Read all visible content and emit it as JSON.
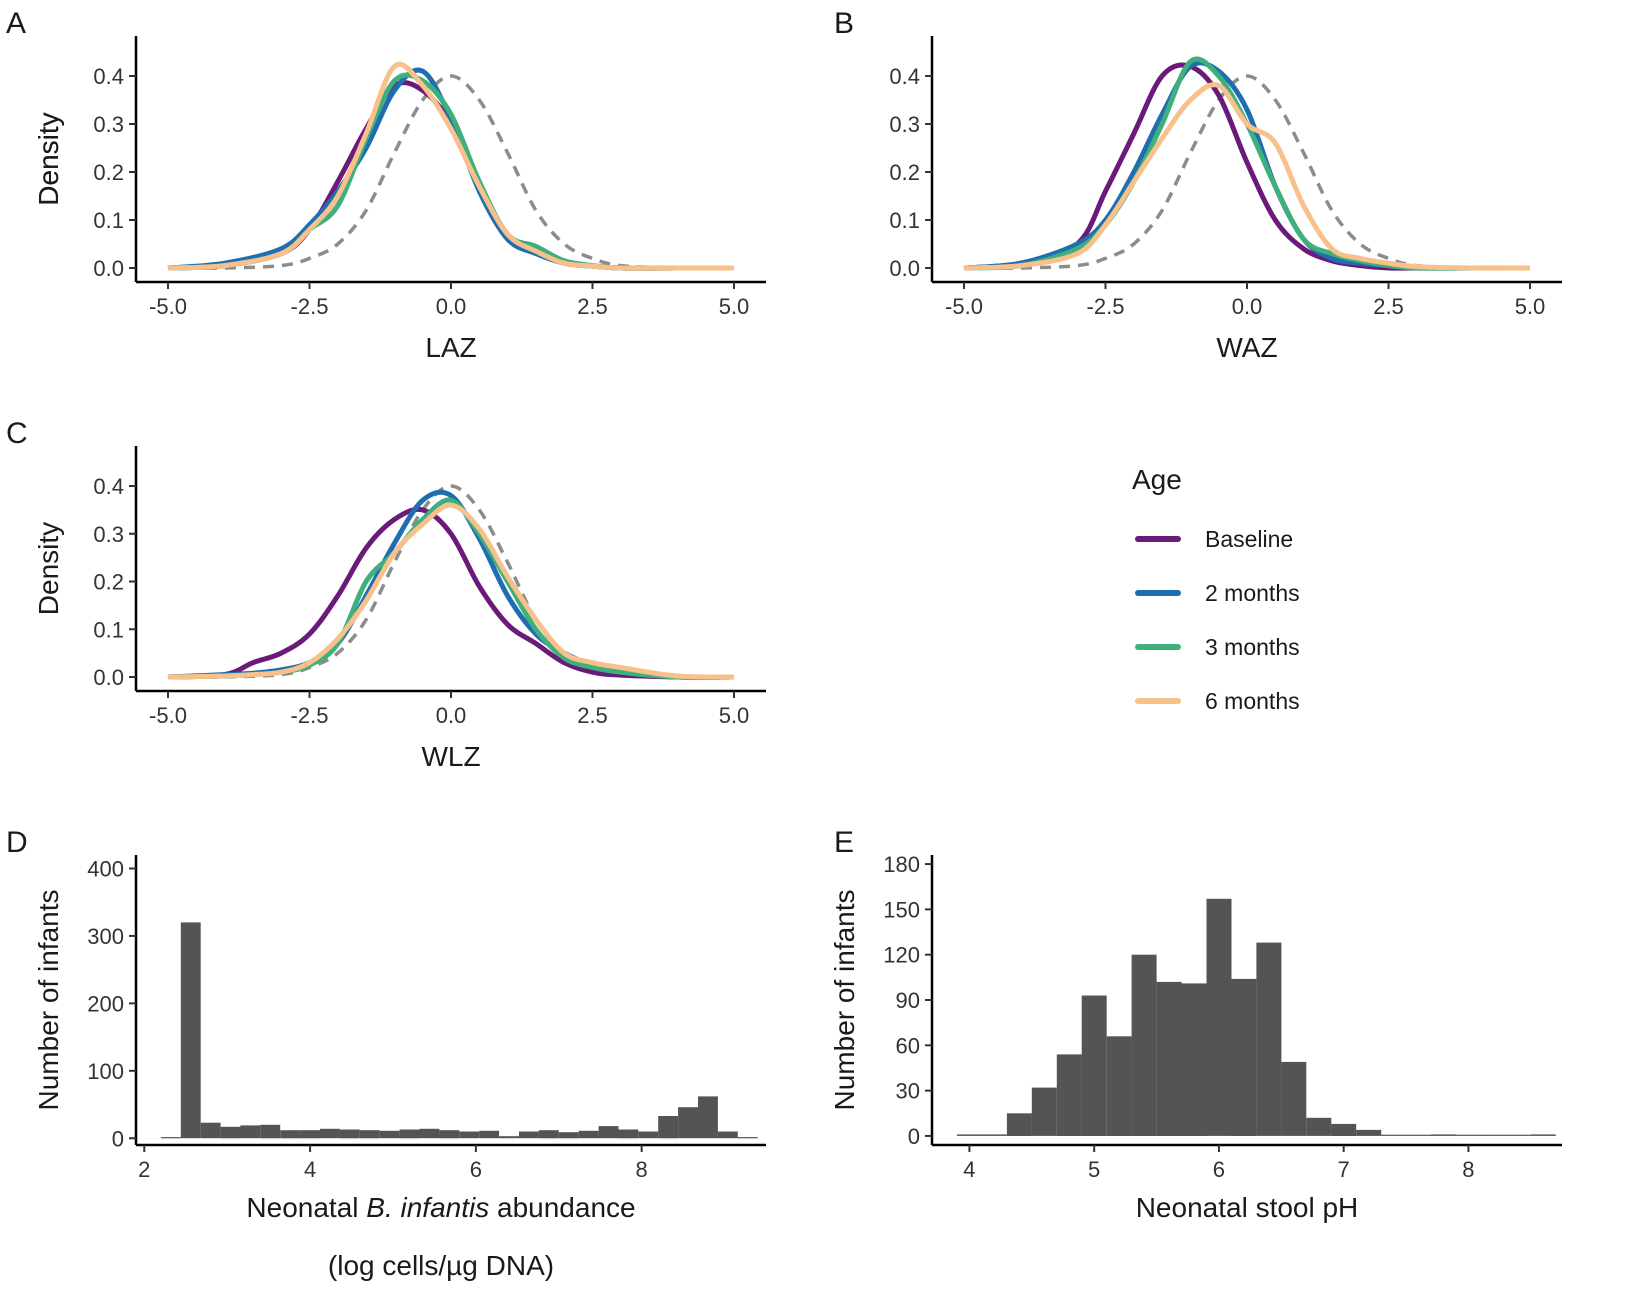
{
  "colors": {
    "baseline": "#6a1a78",
    "m2": "#1f6fb0",
    "m3": "#3fb07b",
    "m6": "#f8c08a",
    "reference": "#8c8c8c",
    "bar": "#545454"
  },
  "legend": {
    "title": "Age",
    "items": [
      {
        "label": "Baseline",
        "color_key": "baseline"
      },
      {
        "label": "2 months",
        "color_key": "m2"
      },
      {
        "label": "3 months",
        "color_key": "m3"
      },
      {
        "label": "6 months",
        "color_key": "m6"
      }
    ]
  },
  "chart_data": [
    {
      "panel": "A",
      "type": "line",
      "xlabel": "LAZ",
      "ylabel": "Density",
      "xlim": [
        -5,
        5
      ],
      "ylim": [
        0,
        0.44
      ],
      "xticks": [
        "-5.0",
        "-2.5",
        "0.0",
        "2.5",
        "5.0"
      ],
      "yticks": [
        "0.0",
        "0.1",
        "0.2",
        "0.3",
        "0.4"
      ],
      "reference": {
        "style": "dashed",
        "x": [
          -5,
          -4,
          -3,
          -2.5,
          -2,
          -1.5,
          -1,
          -0.5,
          0,
          0.5,
          1,
          1.5,
          2,
          2.5,
          3,
          4,
          5
        ],
        "y": [
          0,
          0,
          0.005,
          0.02,
          0.05,
          0.12,
          0.24,
          0.35,
          0.4,
          0.35,
          0.24,
          0.12,
          0.05,
          0.02,
          0.005,
          0,
          0
        ]
      },
      "series": [
        {
          "name": "Baseline",
          "color_key": "baseline",
          "x": [
            -5,
            -4,
            -3,
            -2.5,
            -2,
            -1.5,
            -1,
            -0.5,
            0,
            0.5,
            1,
            1.5,
            2,
            2.5,
            3,
            4,
            5
          ],
          "y": [
            0,
            0.005,
            0.03,
            0.08,
            0.18,
            0.29,
            0.38,
            0.37,
            0.3,
            0.17,
            0.07,
            0.035,
            0.01,
            0.004,
            0,
            0,
            0
          ]
        },
        {
          "name": "2 months",
          "color_key": "m2",
          "x": [
            -5,
            -4,
            -3,
            -2.5,
            -2,
            -1.5,
            -1,
            -0.5,
            0,
            0.5,
            1,
            1.5,
            2,
            2.5,
            3,
            4,
            5
          ],
          "y": [
            0,
            0.01,
            0.04,
            0.09,
            0.16,
            0.25,
            0.37,
            0.41,
            0.31,
            0.16,
            0.06,
            0.03,
            0.01,
            0.004,
            0,
            0,
            0
          ]
        },
        {
          "name": "3 months",
          "color_key": "m3",
          "x": [
            -5,
            -4,
            -3,
            -2.5,
            -2,
            -1.5,
            -1,
            -0.5,
            0,
            0.5,
            1,
            1.5,
            2,
            2.5,
            3,
            4,
            5
          ],
          "y": [
            0,
            0.005,
            0.03,
            0.08,
            0.13,
            0.27,
            0.39,
            0.39,
            0.32,
            0.18,
            0.07,
            0.045,
            0.015,
            0.005,
            0,
            0,
            0
          ]
        },
        {
          "name": "6 months",
          "color_key": "m6",
          "x": [
            -5,
            -4,
            -3,
            -2.5,
            -2,
            -1.5,
            -1,
            -0.5,
            0,
            0.5,
            1,
            1.5,
            2,
            2.5,
            3,
            4,
            5
          ],
          "y": [
            0,
            0.005,
            0.03,
            0.08,
            0.15,
            0.28,
            0.42,
            0.38,
            0.29,
            0.17,
            0.07,
            0.035,
            0.01,
            0.004,
            0,
            0,
            0
          ]
        }
      ]
    },
    {
      "panel": "B",
      "type": "line",
      "xlabel": "WAZ",
      "ylabel": "Density",
      "xlim": [
        -5,
        5
      ],
      "ylim": [
        0,
        0.44
      ],
      "xticks": [
        "-5.0",
        "-2.5",
        "0.0",
        "2.5",
        "5.0"
      ],
      "yticks": [
        "0.0",
        "0.1",
        "0.2",
        "0.3",
        "0.4"
      ],
      "reference": {
        "style": "dashed",
        "x": [
          -5,
          -4,
          -3,
          -2.5,
          -2,
          -1.5,
          -1,
          -0.5,
          0,
          0.5,
          1,
          1.5,
          2,
          2.5,
          3,
          4,
          5
        ],
        "y": [
          0,
          0,
          0.005,
          0.02,
          0.05,
          0.12,
          0.24,
          0.35,
          0.4,
          0.35,
          0.24,
          0.12,
          0.05,
          0.02,
          0.005,
          0,
          0
        ]
      },
      "series": [
        {
          "name": "Baseline",
          "color_key": "baseline",
          "x": [
            -5,
            -4,
            -3,
            -2.5,
            -2,
            -1.5,
            -1,
            -0.5,
            0,
            0.5,
            1,
            1.5,
            2,
            2.5,
            3,
            4,
            5
          ],
          "y": [
            0,
            0.01,
            0.05,
            0.16,
            0.28,
            0.4,
            0.42,
            0.36,
            0.22,
            0.1,
            0.04,
            0.015,
            0.005,
            0,
            0,
            0,
            0
          ]
        },
        {
          "name": "2 months",
          "color_key": "m2",
          "x": [
            -5,
            -4,
            -3,
            -2.5,
            -2,
            -1.5,
            -1,
            -0.5,
            0,
            0.5,
            1,
            1.5,
            2,
            2.5,
            3,
            4,
            5
          ],
          "y": [
            0,
            0.01,
            0.05,
            0.1,
            0.2,
            0.32,
            0.42,
            0.41,
            0.33,
            0.17,
            0.06,
            0.02,
            0.01,
            0.005,
            0,
            0,
            0
          ]
        },
        {
          "name": "3 months",
          "color_key": "m3",
          "x": [
            -5,
            -4,
            -3,
            -2.5,
            -2,
            -1.5,
            -1,
            -0.5,
            0,
            0.5,
            1,
            1.5,
            2,
            2.5,
            3,
            4,
            5
          ],
          "y": [
            0,
            0.005,
            0.04,
            0.09,
            0.18,
            0.3,
            0.43,
            0.4,
            0.3,
            0.17,
            0.06,
            0.03,
            0.015,
            0.005,
            0,
            0,
            0
          ]
        },
        {
          "name": "6 months",
          "color_key": "m6",
          "x": [
            -5,
            -4,
            -3,
            -2.5,
            -2,
            -1.5,
            -1,
            -0.5,
            0,
            0.5,
            1,
            1.5,
            2,
            2.5,
            3,
            4,
            5
          ],
          "y": [
            0,
            0.005,
            0.03,
            0.09,
            0.18,
            0.27,
            0.35,
            0.38,
            0.3,
            0.26,
            0.13,
            0.04,
            0.02,
            0.01,
            0.003,
            0,
            0
          ]
        }
      ]
    },
    {
      "panel": "C",
      "type": "line",
      "xlabel": "WLZ",
      "ylabel": "Density",
      "xlim": [
        -5,
        5
      ],
      "ylim": [
        0,
        0.44
      ],
      "xticks": [
        "-5.0",
        "-2.5",
        "0.0",
        "2.5",
        "5.0"
      ],
      "yticks": [
        "0.0",
        "0.1",
        "0.2",
        "0.3",
        "0.4"
      ],
      "reference": {
        "style": "dashed",
        "x": [
          -5,
          -4,
          -3,
          -2.5,
          -2,
          -1.5,
          -1,
          -0.5,
          0,
          0.5,
          1,
          1.5,
          2,
          2.5,
          3,
          4,
          5
        ],
        "y": [
          0,
          0,
          0.005,
          0.02,
          0.05,
          0.12,
          0.24,
          0.35,
          0.4,
          0.35,
          0.24,
          0.12,
          0.05,
          0.02,
          0.005,
          0,
          0
        ]
      },
      "series": [
        {
          "name": "Baseline",
          "color_key": "baseline",
          "x": [
            -5,
            -4,
            -3.5,
            -3,
            -2.5,
            -2,
            -1.5,
            -1,
            -0.5,
            0,
            0.5,
            1,
            1.5,
            2,
            2.5,
            3,
            4,
            5
          ],
          "y": [
            0,
            0.005,
            0.03,
            0.05,
            0.09,
            0.17,
            0.27,
            0.33,
            0.35,
            0.3,
            0.19,
            0.11,
            0.07,
            0.03,
            0.01,
            0.004,
            0,
            0
          ]
        },
        {
          "name": "2 months",
          "color_key": "m2",
          "x": [
            -5,
            -4,
            -3.5,
            -3,
            -2.5,
            -2,
            -1.5,
            -1,
            -0.5,
            0,
            0.5,
            1,
            1.5,
            2,
            2.5,
            3,
            4,
            5
          ],
          "y": [
            0,
            0.005,
            0.008,
            0.015,
            0.03,
            0.07,
            0.17,
            0.28,
            0.37,
            0.38,
            0.29,
            0.17,
            0.09,
            0.05,
            0.025,
            0.01,
            0,
            0
          ]
        },
        {
          "name": "3 months",
          "color_key": "m3",
          "x": [
            -5,
            -4,
            -3.5,
            -3,
            -2.5,
            -2,
            -1.5,
            -1,
            -0.5,
            0,
            0.5,
            1,
            1.5,
            2,
            2.5,
            3,
            4,
            5
          ],
          "y": [
            0,
            0.002,
            0.005,
            0.01,
            0.025,
            0.07,
            0.2,
            0.26,
            0.33,
            0.37,
            0.3,
            0.2,
            0.1,
            0.04,
            0.02,
            0.01,
            0,
            0
          ]
        },
        {
          "name": "6 months",
          "color_key": "m6",
          "x": [
            -5,
            -4,
            -3.5,
            -3,
            -2.5,
            -2,
            -1.5,
            -1,
            -0.5,
            0,
            0.5,
            1,
            1.5,
            2,
            2.5,
            3,
            4,
            5
          ],
          "y": [
            0,
            0.002,
            0.005,
            0.01,
            0.03,
            0.08,
            0.16,
            0.26,
            0.32,
            0.36,
            0.31,
            0.21,
            0.12,
            0.05,
            0.03,
            0.02,
            0.002,
            0
          ]
        }
      ]
    },
    {
      "panel": "D",
      "type": "bar",
      "subtype": "histogram",
      "xlabel_prefix": "Neonatal ",
      "xlabel_italic": "B. infantis",
      "xlabel_suffix": " abundance",
      "xlabel_line2": "(log cells/µg DNA)",
      "ylabel": "Number of infants",
      "xlim": [
        1.9,
        9.5
      ],
      "ylim": [
        -10,
        420
      ],
      "xticks": [
        "2",
        "4",
        "6",
        "8"
      ],
      "xtick_values": [
        2,
        4,
        6,
        8
      ],
      "yticks": [
        "0",
        "100",
        "200",
        "300",
        "400"
      ],
      "ytick_values": [
        0,
        100,
        200,
        300,
        400
      ],
      "bin_start": 2.2,
      "bin_width": 0.24,
      "values": [
        0,
        320,
        23,
        17,
        19,
        20,
        12,
        12,
        14,
        13,
        12,
        11,
        13,
        14,
        12,
        10,
        11,
        3,
        10,
        12,
        9,
        11,
        18,
        13,
        10,
        33,
        46,
        62,
        10,
        0
      ]
    },
    {
      "panel": "E",
      "type": "bar",
      "subtype": "histogram",
      "xlabel": "Neonatal stool pH",
      "ylabel": "Number of infants",
      "xlim": [
        3.7,
        8.75
      ],
      "ylim": [
        -6,
        186
      ],
      "xticks": [
        "4",
        "5",
        "6",
        "7",
        "8"
      ],
      "xtick_values": [
        4,
        5,
        6,
        7,
        8
      ],
      "yticks": [
        "0",
        "30",
        "60",
        "90",
        "120",
        "150",
        "180"
      ],
      "ytick_values": [
        0,
        30,
        60,
        90,
        120,
        150,
        180
      ],
      "bin_start": 3.9,
      "bin_width": 0.2,
      "values": [
        1,
        1,
        15,
        32,
        54,
        93,
        66,
        120,
        102,
        101,
        157,
        104,
        128,
        49,
        12,
        8,
        4,
        0,
        0,
        1,
        0,
        0,
        0,
        1
      ]
    }
  ],
  "panels": {
    "A": {
      "letter": "A"
    },
    "B": {
      "letter": "B"
    },
    "C": {
      "letter": "C"
    },
    "D": {
      "letter": "D"
    },
    "E": {
      "letter": "E"
    }
  }
}
